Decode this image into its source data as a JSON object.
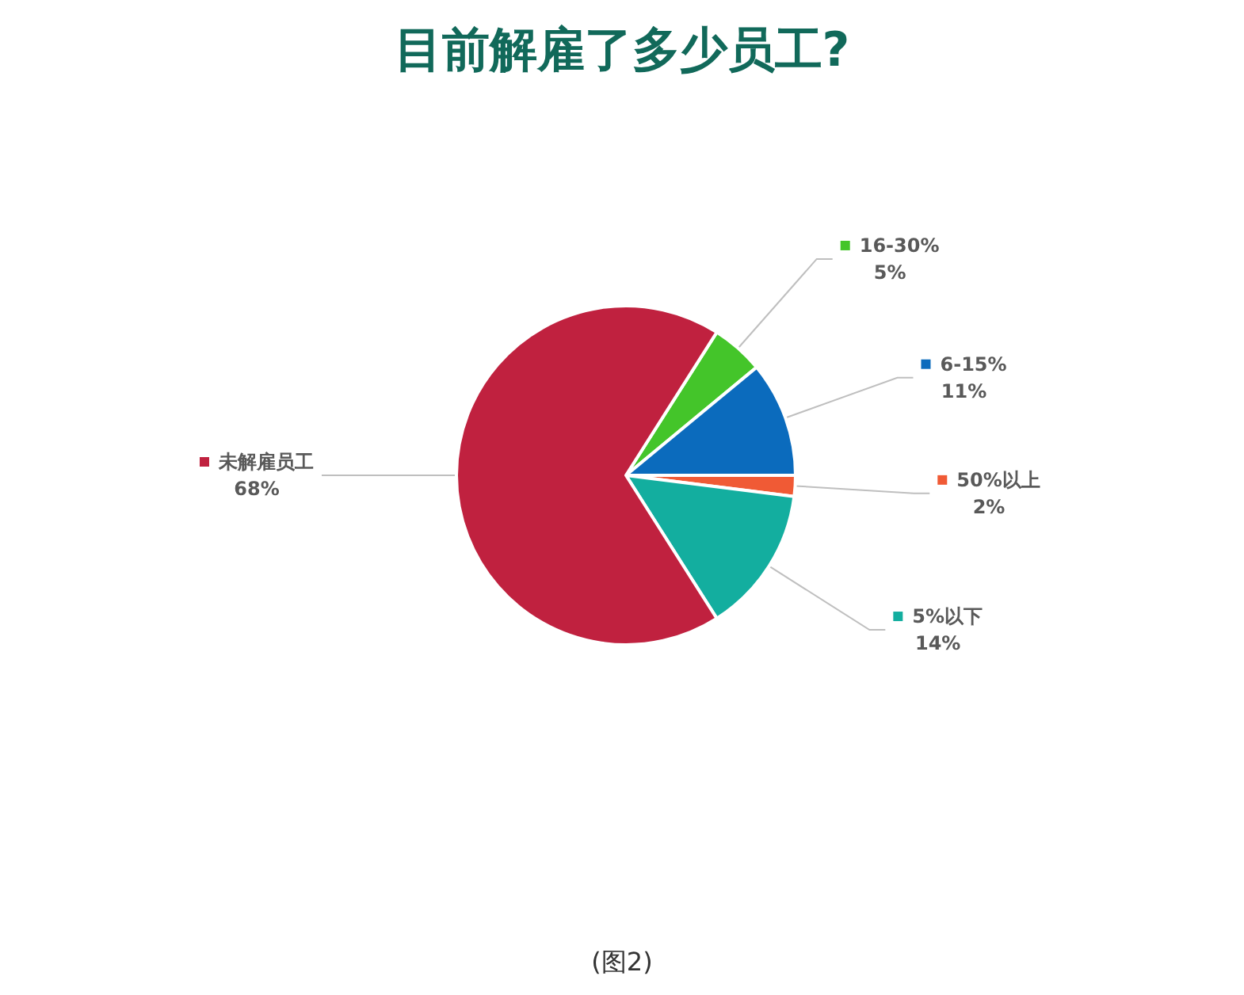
{
  "chart_data": {
    "type": "pie",
    "title": "目前解雇了多少员工?",
    "categories": [
      "16-30%",
      "6-15%",
      "50%以上",
      "5%以下",
      "未解雇员工"
    ],
    "values": [
      5,
      11,
      2,
      14,
      68
    ],
    "value_labels": [
      "5%",
      "11%",
      "2%",
      "14%",
      "68%"
    ],
    "colors": [
      "#44c52a",
      "#0b6bbd",
      "#f05a35",
      "#13ae9f",
      "#c0213f"
    ],
    "legend": "right",
    "annotations": [
      "(图2)"
    ]
  }
}
